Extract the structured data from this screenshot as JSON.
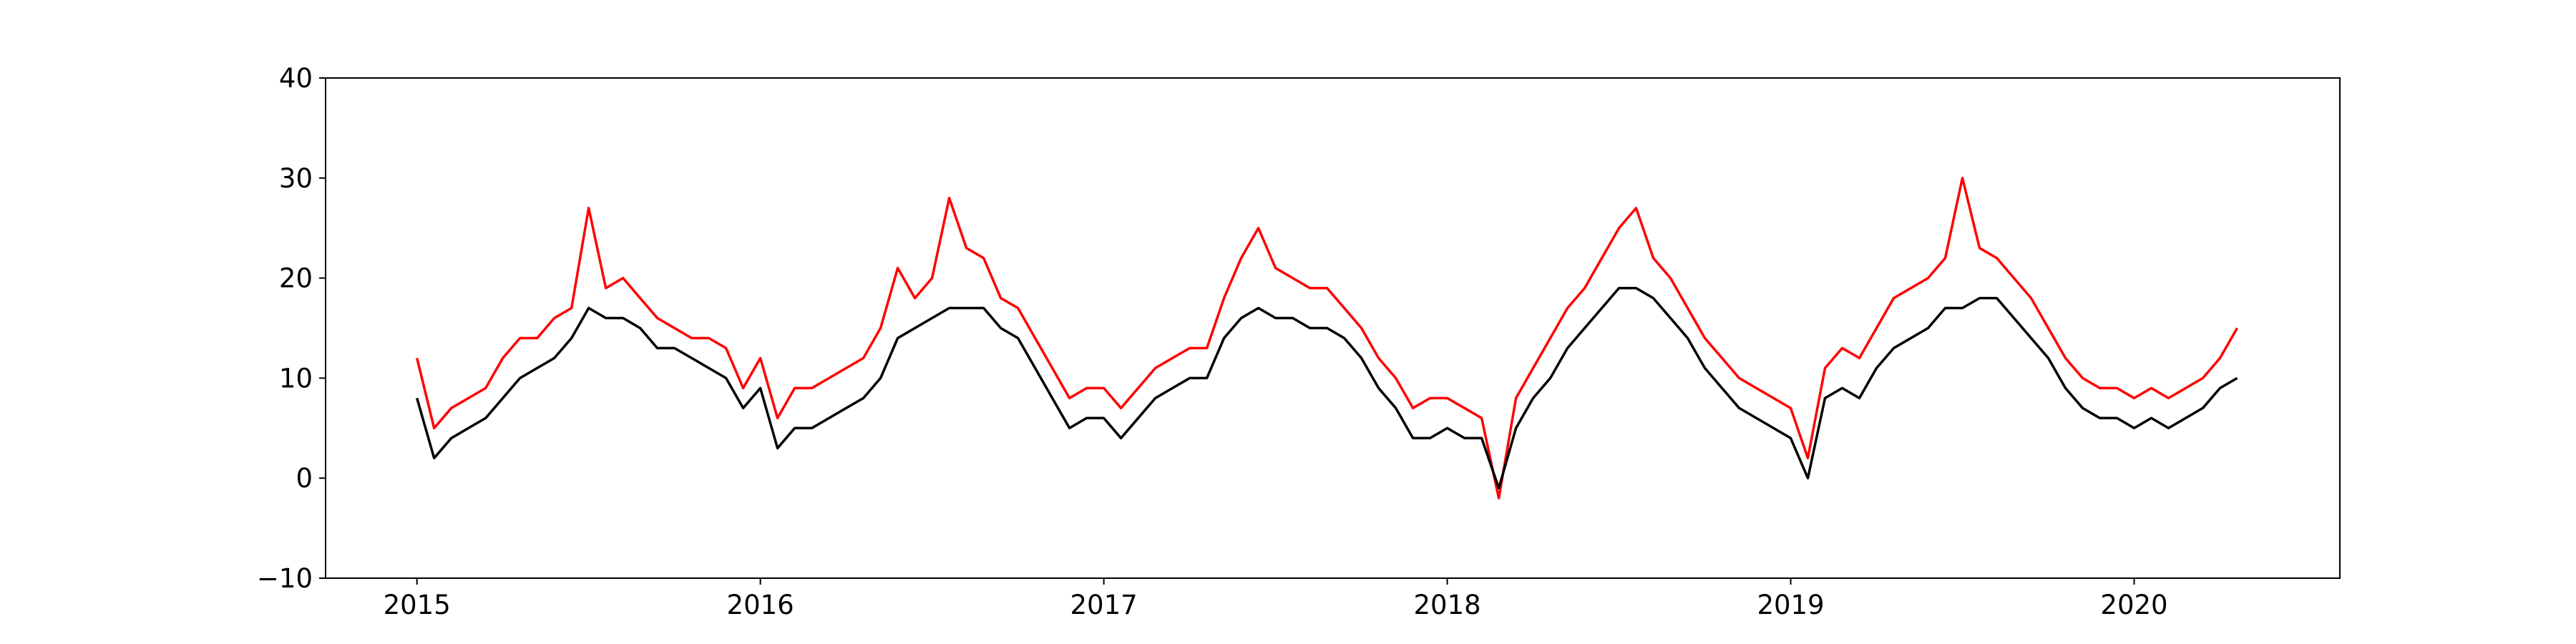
{
  "chart_data": {
    "type": "line",
    "x": [
      2015.0,
      2015.05,
      2015.1,
      2015.15,
      2015.2,
      2015.25,
      2015.3,
      2015.35,
      2015.4,
      2015.45,
      2015.5,
      2015.55,
      2015.6,
      2015.65,
      2015.7,
      2015.75,
      2015.8,
      2015.85,
      2015.9,
      2015.95,
      2016.0,
      2016.05,
      2016.1,
      2016.15,
      2016.2,
      2016.25,
      2016.3,
      2016.35,
      2016.4,
      2016.45,
      2016.5,
      2016.55,
      2016.6,
      2016.65,
      2016.7,
      2016.75,
      2016.8,
      2016.85,
      2016.9,
      2016.95,
      2017.0,
      2017.05,
      2017.1,
      2017.15,
      2017.2,
      2017.25,
      2017.3,
      2017.35,
      2017.4,
      2017.45,
      2017.5,
      2017.55,
      2017.6,
      2017.65,
      2017.7,
      2017.75,
      2017.8,
      2017.85,
      2017.9,
      2017.95,
      2018.0,
      2018.05,
      2018.1,
      2018.15,
      2018.2,
      2018.25,
      2018.3,
      2018.35,
      2018.4,
      2018.45,
      2018.5,
      2018.55,
      2018.6,
      2018.65,
      2018.7,
      2018.75,
      2018.8,
      2018.85,
      2018.9,
      2018.95,
      2019.0,
      2019.05,
      2019.1,
      2019.15,
      2019.2,
      2019.25,
      2019.3,
      2019.35,
      2019.4,
      2019.45,
      2019.5,
      2019.55,
      2019.6,
      2019.65,
      2019.7,
      2019.75,
      2019.8,
      2019.85,
      2019.9,
      2019.95,
      2020.0,
      2020.05,
      2020.1,
      2020.15,
      2020.2,
      2020.25,
      2020.3
    ],
    "series": [
      {
        "color": "#ff0000",
        "values": [
          12,
          5,
          7,
          8,
          9,
          12,
          14,
          14,
          16,
          17,
          27,
          19,
          20,
          18,
          16,
          15,
          14,
          14,
          13,
          9,
          12,
          6,
          9,
          9,
          10,
          11,
          12,
          15,
          21,
          18,
          20,
          28,
          23,
          22,
          18,
          17,
          14,
          11,
          8,
          9,
          9,
          7,
          9,
          11,
          12,
          13,
          13,
          18,
          22,
          25,
          21,
          20,
          19,
          19,
          17,
          15,
          12,
          10,
          7,
          8,
          8,
          7,
          6,
          -2,
          8,
          11,
          14,
          17,
          19,
          22,
          25,
          27,
          22,
          20,
          17,
          14,
          12,
          10,
          9,
          8,
          7,
          2,
          11,
          13,
          12,
          15,
          18,
          19,
          20,
          22,
          30,
          23,
          22,
          20,
          18,
          15,
          12,
          10,
          9,
          9,
          8,
          9,
          8,
          9,
          10,
          12,
          15
        ]
      },
      {
        "color": "#000000",
        "values": [
          8,
          2,
          4,
          5,
          6,
          8,
          10,
          11,
          12,
          14,
          17,
          16,
          16,
          15,
          13,
          13,
          12,
          11,
          10,
          7,
          9,
          3,
          5,
          5,
          6,
          7,
          8,
          10,
          14,
          15,
          16,
          17,
          17,
          17,
          15,
          14,
          11,
          8,
          5,
          6,
          6,
          4,
          6,
          8,
          9,
          10,
          10,
          14,
          16,
          17,
          16,
          16,
          15,
          15,
          14,
          12,
          9,
          7,
          4,
          4,
          5,
          4,
          4,
          -1,
          5,
          8,
          10,
          13,
          15,
          17,
          19,
          19,
          18,
          16,
          14,
          11,
          9,
          7,
          6,
          5,
          4,
          0,
          8,
          9,
          8,
          11,
          13,
          14,
          15,
          17,
          17,
          18,
          18,
          16,
          14,
          12,
          9,
          7,
          6,
          6,
          5,
          6,
          5,
          6,
          7,
          9,
          10
        ]
      }
    ],
    "xlim": [
      2014.734,
      2020.599
    ],
    "xticks": [
      2015,
      2016,
      2017,
      2018,
      2019,
      2020
    ],
    "ylim": [
      -10,
      40
    ],
    "yticks": [
      {
        "value": -10,
        "label": "−10"
      },
      0,
      10,
      20,
      30,
      40
    ]
  }
}
